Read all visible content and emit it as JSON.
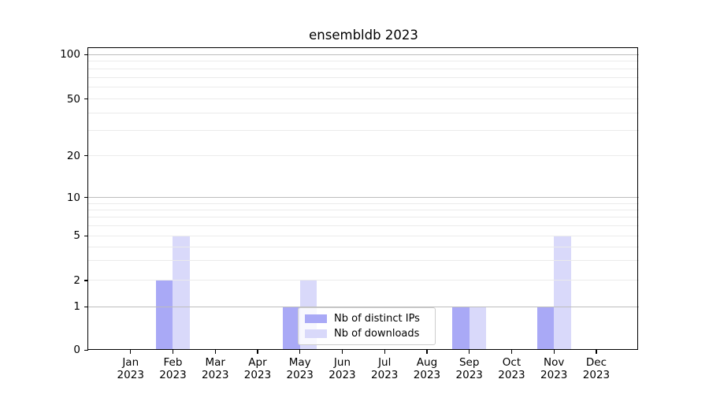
{
  "chart_data": {
    "type": "bar",
    "title": "ensembldb 2023",
    "categories": [
      "Jan",
      "Feb",
      "Mar",
      "Apr",
      "May",
      "Jun",
      "Jul",
      "Aug",
      "Sep",
      "Oct",
      "Nov",
      "Dec"
    ],
    "year": "2023",
    "series": [
      {
        "name": "Nb of distinct IPs",
        "color": "#a9a9f6",
        "values": [
          0,
          2,
          0,
          0,
          1,
          0,
          0,
          0,
          1,
          0,
          1,
          0
        ]
      },
      {
        "name": "Nb of downloads",
        "color": "#d9d9fa",
        "values": [
          0,
          5,
          0,
          0,
          2,
          0,
          0,
          0,
          1,
          0,
          5,
          0
        ]
      }
    ],
    "y_ticks": [
      0,
      1,
      2,
      5,
      10,
      20,
      50,
      100
    ],
    "y_major_gridlines": [
      1,
      10,
      100
    ],
    "y_minor_gridlines": [
      2,
      3,
      4,
      5,
      6,
      7,
      8,
      9,
      20,
      30,
      40,
      50,
      60,
      70,
      80,
      90
    ],
    "ylim": [
      0,
      110
    ],
    "scale": "log-like (linear 0-1, logarithmic above 1)",
    "grid": true,
    "legend_position": "lower center",
    "colors": {
      "major_grid": "#bdbdbd",
      "minor_grid": "#ebebeb",
      "spine": "#000000",
      "text": "#000000",
      "background": "#ffffff"
    }
  }
}
